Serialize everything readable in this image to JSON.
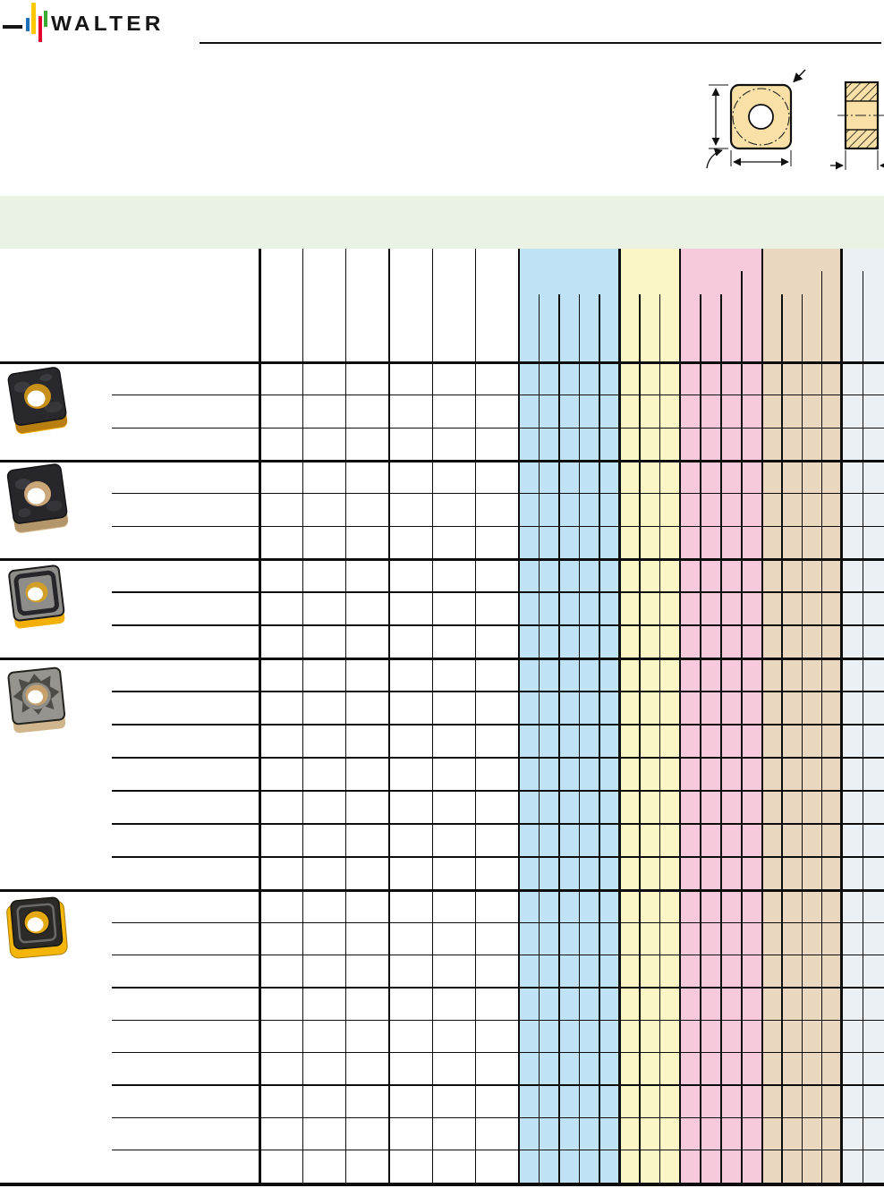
{
  "brand": {
    "logo_text": "WALTER"
  },
  "colors": {
    "logo_blue": "#1d71b8",
    "logo_yellow": "#ffc803",
    "logo_red": "#e4032e",
    "logo_green": "#3aaa35",
    "band_green": "#eaf3e3",
    "grid_line": "#0d0d0d",
    "drawing_fill": "#f8e0a6",
    "insert_gold": "#f2ae06",
    "insert_sand": "#d8bc90"
  },
  "table": {
    "description_column": {
      "label": "",
      "width_note": "empty product description column"
    },
    "plain_columns": {
      "count": 6,
      "color": "#ffffff"
    },
    "column_groups": [
      {
        "name": "blue-group",
        "columns": 5,
        "color": "#bfe3f4",
        "tall_divider": null
      },
      {
        "name": "yellow-group",
        "columns": 3,
        "color": "#fbf6c6",
        "tall_divider": null
      },
      {
        "name": "pink-group",
        "columns": 4,
        "color": "#f6c9dd",
        "tall_divider": 2
      },
      {
        "name": "tan-group",
        "columns": 4,
        "color": "#e9d8bf",
        "tall_divider": 2
      },
      {
        "name": "gray-group",
        "columns": 2,
        "color": "#eaf0f4",
        "tall_divider": 0
      }
    ],
    "groups": [
      {
        "insert": "insert-black-top-gold-base",
        "rows": 3
      },
      {
        "insert": "insert-black-top-sand-base",
        "rows": 3
      },
      {
        "insert": "insert-frame-chipbreaker-gold-base",
        "rows": 3
      },
      {
        "insert": "insert-star-chipbreaker-sand-base",
        "rows": 7
      },
      {
        "insert": "insert-gold-body-black-top",
        "rows": 9
      }
    ]
  },
  "drawing": {
    "views": [
      "front-view-square-insert-with-hole",
      "side-view-with-hatched-section"
    ]
  }
}
